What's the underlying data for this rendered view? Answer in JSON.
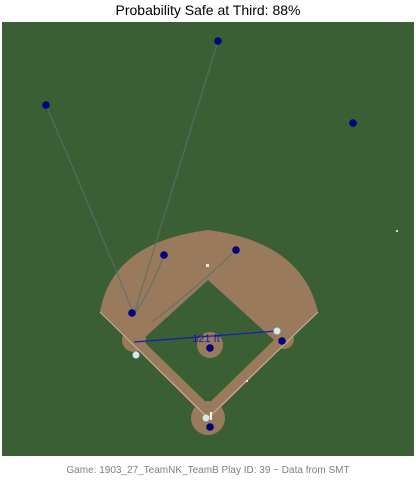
{
  "title": "Probability Safe at Third: 88%",
  "distance_label": "121 ft",
  "caption": "Game: 1903_27_TeamNK_TeamB Play ID: 39 ~ Data from SMT",
  "colors": {
    "grass": "#3a5f35",
    "dirt": "#9a7a5c",
    "player": "#00007f",
    "ball": "#d6e6ee",
    "distance_line": "#1a1aaa",
    "trail": "#5a6f6a"
  }
}
